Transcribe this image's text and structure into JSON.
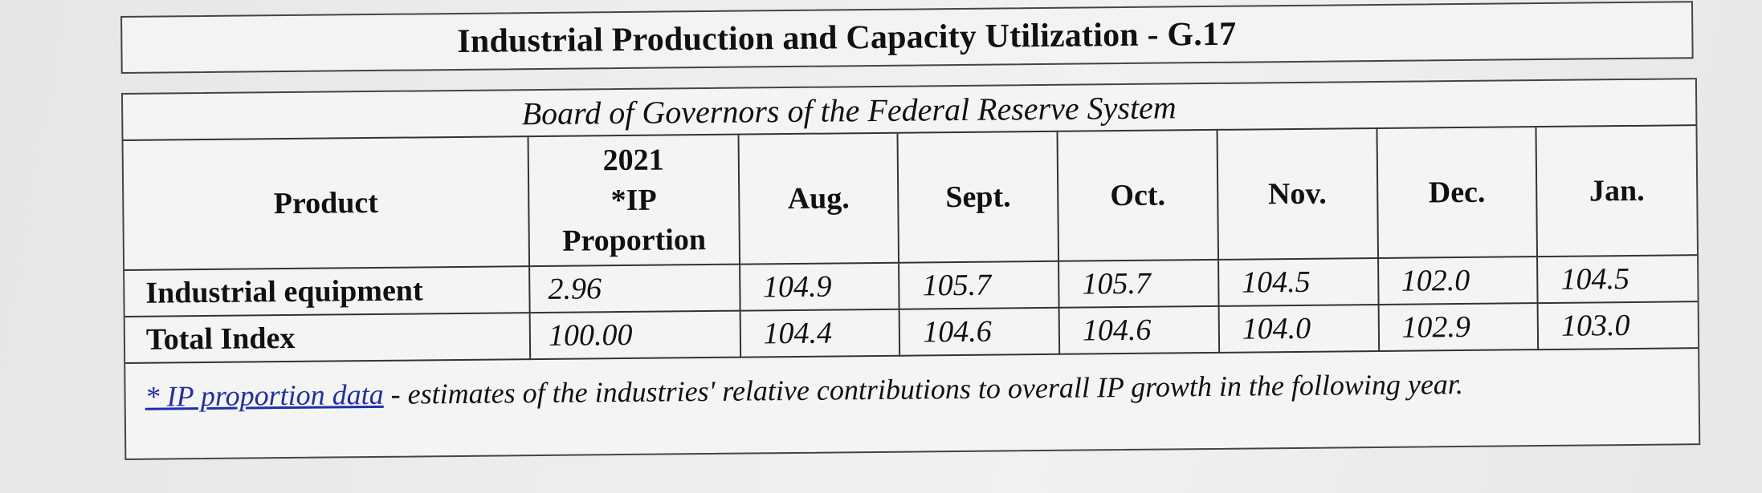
{
  "header": {
    "title": "Industrial Production and Capacity Utilization - G.17",
    "subtitle": "Board of Governors of the Federal Reserve System"
  },
  "table": {
    "columns": {
      "product": "Product",
      "proportion_year": "2021",
      "proportion_ip": "*IP",
      "proportion_label": "Proportion",
      "months": [
        "Aug.",
        "Sept.",
        "Oct.",
        "Nov.",
        "Dec.",
        "Jan."
      ]
    },
    "rows": [
      {
        "label": "Industrial equipment",
        "proportion": "2.96",
        "values": [
          "104.9",
          "105.7",
          "105.7",
          "104.5",
          "102.0",
          "104.5"
        ]
      },
      {
        "label": "Total Index",
        "proportion": "100.00",
        "values": [
          "104.4",
          "104.6",
          "104.6",
          "104.0",
          "102.9",
          "103.0"
        ]
      }
    ]
  },
  "footnote": {
    "link_text": "* IP proportion data",
    "text": " - estimates of the industries' relative contributions to overall IP growth in the following year."
  }
}
